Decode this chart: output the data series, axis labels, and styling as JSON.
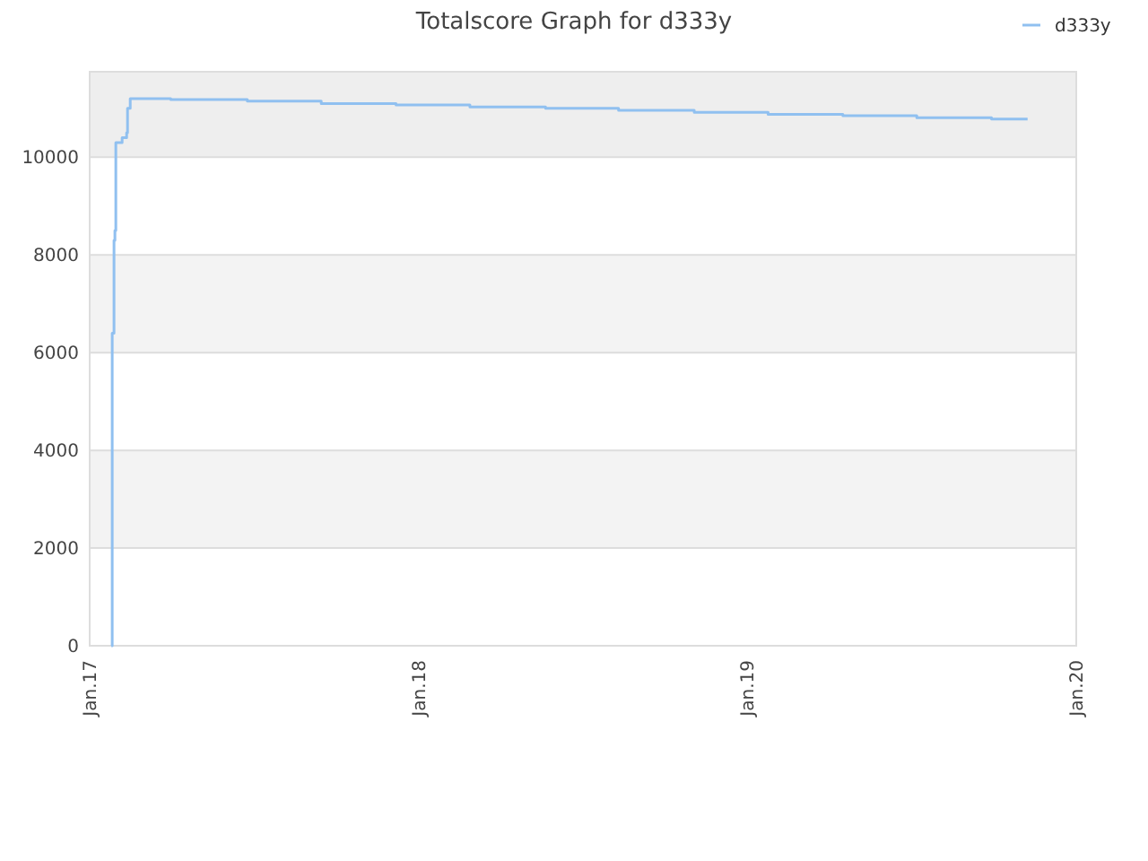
{
  "chart_data": {
    "type": "step",
    "title": "Totalscore Graph for d333y",
    "x": [
      "2017-01-25",
      "2017-01-26",
      "2017-01-28",
      "2017-01-29",
      "2017-01-30",
      "2017-02-06",
      "2017-02-11",
      "2017-02-12",
      "2017-02-15",
      "2017-04-01",
      "2017-06-25",
      "2017-09-15",
      "2017-12-07",
      "2018-02-27",
      "2018-05-22",
      "2018-08-11",
      "2018-11-03",
      "2019-01-24",
      "2019-04-17",
      "2019-07-08",
      "2019-09-29",
      "2019-11-08"
    ],
    "series": [
      {
        "name": "d333y",
        "color": "#90c0f0",
        "values": [
          0,
          6400,
          8300,
          8500,
          10300,
          10400,
          10500,
          11000,
          11200,
          11180,
          11150,
          11100,
          11070,
          11030,
          11000,
          10960,
          10920,
          10880,
          10850,
          10810,
          10780,
          10780
        ]
      }
    ],
    "xlim": [
      "2017-01-01",
      "2020-01-01"
    ],
    "xticks": [
      {
        "value": "2017-01-01",
        "label": "Jan.17"
      },
      {
        "value": "2018-01-01",
        "label": "Jan.18"
      },
      {
        "value": "2019-01-01",
        "label": "Jan.19"
      },
      {
        "value": "2020-01-01",
        "label": "Jan.20"
      }
    ],
    "ylim": [
      0,
      11750
    ],
    "yticks": [
      0,
      2000,
      4000,
      6000,
      8000,
      10000
    ],
    "grid": "y",
    "legend": "top right"
  }
}
